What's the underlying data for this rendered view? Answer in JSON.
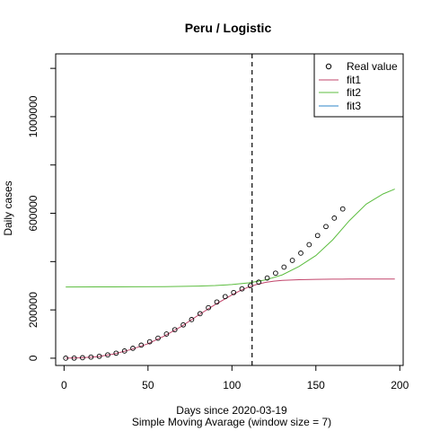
{
  "chart_data": {
    "type": "line",
    "title": "Peru / Logistic",
    "xlabel": "Days since 2020-03-19",
    "subtitle": "Simple Moving Avarage (window size = 7)",
    "ylabel": "Daily cases",
    "xlim": [
      -5,
      202
    ],
    "ylim": [
      -30000,
      1260000
    ],
    "xticks": [
      0,
      50,
      100,
      150,
      200
    ],
    "yticks": [
      0,
      200000,
      600000,
      1000000
    ],
    "ytick_labels": [
      "0",
      "200000",
      "600000",
      "1000000"
    ],
    "vline": {
      "x": 112,
      "style": "dashed"
    },
    "grid": false,
    "legend_position": "top-right",
    "legend": [
      {
        "label": "Real value",
        "kind": "point"
      },
      {
        "label": "fit1",
        "kind": "line",
        "color": "#c2456b"
      },
      {
        "label": "fit2",
        "kind": "line",
        "color": "#5cbd3f"
      },
      {
        "label": "fit3",
        "kind": "line",
        "color": "#2f86c9"
      }
    ],
    "real_value": {
      "x": [
        1,
        6,
        11,
        16,
        21,
        26,
        31,
        36,
        41,
        46,
        51,
        56,
        61,
        66,
        71,
        76,
        81,
        86,
        91,
        96,
        101,
        106,
        111,
        116,
        121,
        126,
        131,
        136,
        141,
        146,
        151,
        156,
        161,
        166
      ],
      "y": [
        100,
        600,
        2000,
        4500,
        8000,
        14000,
        21000,
        30000,
        41000,
        54000,
        68000,
        83000,
        100000,
        118000,
        138000,
        160000,
        184000,
        209000,
        233000,
        255000,
        272000,
        287000,
        300000,
        315000,
        332000,
        352000,
        377000,
        405000,
        435000,
        470000,
        508000,
        545000,
        580000,
        618000
      ]
    },
    "series": [
      {
        "name": "fit1",
        "color": "#c2456b",
        "x": [
          1,
          10,
          20,
          30,
          40,
          50,
          60,
          70,
          80,
          90,
          100,
          105,
          110,
          115,
          120,
          125,
          130,
          140,
          150,
          160,
          170,
          180,
          197
        ],
        "y": [
          0,
          1500,
          6000,
          18000,
          36000,
          60000,
          93000,
          132000,
          178000,
          222000,
          262000,
          280000,
          295000,
          306000,
          314000,
          319000,
          322000,
          325000,
          326500,
          327200,
          327600,
          327800,
          328000
        ]
      },
      {
        "name": "fit2",
        "color": "#5cbd3f",
        "x": [
          1,
          20,
          40,
          60,
          80,
          90,
          100,
          110,
          120,
          130,
          140,
          150,
          160,
          170,
          180,
          190,
          197
        ],
        "y": [
          295000,
          295200,
          295600,
          296500,
          298500,
          301000,
          305000,
          312000,
          324000,
          345000,
          380000,
          425000,
          490000,
          570000,
          638000,
          680000,
          700000
        ]
      }
    ]
  }
}
